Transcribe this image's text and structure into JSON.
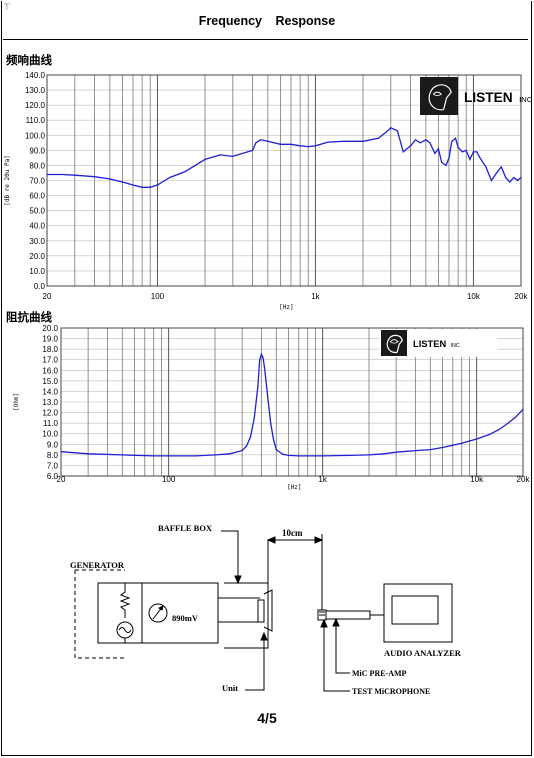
{
  "header": {
    "corner_mark": "⊤",
    "title": "Frequency    Response"
  },
  "footer": {
    "page": "4/5"
  },
  "logo": {
    "text": "LISTEN",
    "suffix": "INC"
  },
  "colors": {
    "curve": "#1f1fd6",
    "grid": "#777777",
    "grid_minor": "#bdbdbd",
    "logo_bg": "#1a1a1a"
  },
  "chart_data": [
    {
      "type": "line",
      "title": "频响曲线",
      "xlabel": "[Hz]",
      "ylabel": "[dB re 20u Pa]",
      "xscale": "log",
      "xlim": [
        20,
        20000
      ],
      "ylim": [
        0,
        140
      ],
      "xticks": [
        "20",
        "100",
        "1k",
        "10k",
        "20k"
      ],
      "yticks": [
        "0.0",
        "10.0",
        "20.0",
        "30.0",
        "40.0",
        "50.0",
        "60.0",
        "70.0",
        "80.0",
        "90.0",
        "100.0",
        "110.0",
        "120.0",
        "130.0",
        "140.0"
      ],
      "grid": true,
      "series": [
        {
          "x": [
            20,
            25,
            30,
            40,
            50,
            60,
            70,
            80,
            90,
            100,
            120,
            150,
            200,
            250,
            300,
            400,
            420,
            450,
            500,
            600,
            700,
            800,
            900,
            1000,
            1200,
            1500,
            2000,
            2500,
            2800,
            3000,
            3300,
            3600,
            4000,
            4300,
            4600,
            5000,
            5300,
            5700,
            6000,
            6300,
            6700,
            7000,
            7300,
            7700,
            8000,
            8500,
            9000,
            9500,
            10000,
            10500,
            11000,
            12000,
            13000,
            14000,
            15000,
            16000,
            17000,
            18000,
            19000,
            20000
          ],
          "y": [
            74,
            74,
            73.5,
            72.5,
            71,
            69,
            67,
            65.5,
            65.5,
            67,
            72,
            76,
            84,
            87,
            86,
            90,
            95,
            97,
            96,
            94,
            94,
            93,
            92.5,
            93,
            95.5,
            96,
            96,
            98,
            102,
            105,
            103,
            89,
            93,
            97,
            95,
            97,
            95,
            88,
            91,
            82,
            80,
            85,
            96,
            98,
            92,
            89,
            90,
            84,
            89,
            89,
            85,
            79,
            70,
            75,
            79,
            72,
            69,
            72,
            70,
            72
          ]
        }
      ]
    },
    {
      "type": "line",
      "title": "阻抗曲线",
      "xlabel": "[Hz]",
      "ylabel": "[Ohm]",
      "xscale": "log",
      "xlim": [
        20,
        20000
      ],
      "ylim": [
        6,
        20
      ],
      "xticks": [
        "20",
        "100",
        "1k",
        "10k",
        "20k"
      ],
      "yticks": [
        "6.0",
        "7.0",
        "8.0",
        "9.0",
        "10.0",
        "11.0",
        "12.0",
        "13.0",
        "14.0",
        "15.0",
        "16.0",
        "17.0",
        "18.0",
        "19.0",
        "20.0"
      ],
      "grid": true,
      "series": [
        {
          "x": [
            20,
            30,
            50,
            80,
            100,
            150,
            200,
            250,
            300,
            320,
            340,
            360,
            380,
            390,
            400,
            410,
            420,
            440,
            460,
            480,
            500,
            550,
            600,
            700,
            800,
            1000,
            1500,
            2000,
            2500,
            3000,
            4000,
            5000,
            6000,
            7000,
            8000,
            10000,
            12000,
            14000,
            16000,
            18000,
            20000
          ],
          "y": [
            8.3,
            8.1,
            8.0,
            7.9,
            7.9,
            7.9,
            8.0,
            8.1,
            8.4,
            8.8,
            9.7,
            11.5,
            14.5,
            17.0,
            17.5,
            17.2,
            16.2,
            13.5,
            11.0,
            9.4,
            8.5,
            8.05,
            7.95,
            7.9,
            7.9,
            7.9,
            7.95,
            8.0,
            8.1,
            8.25,
            8.4,
            8.5,
            8.7,
            8.9,
            9.1,
            9.5,
            9.9,
            10.4,
            11.0,
            11.6,
            12.3
          ]
        }
      ]
    }
  ],
  "diagram": {
    "generator_label": "GENERATOR",
    "voltage_label": "890mV",
    "baffle_label": "BAFFLE BOX",
    "distance_label": "10cm",
    "unit_label": "Unit",
    "analyzer_label": "AUDIO ANALYZER",
    "preamp_label": "MiC PRE-AMP",
    "microphone_label": "TEST MiCROPHONE"
  }
}
